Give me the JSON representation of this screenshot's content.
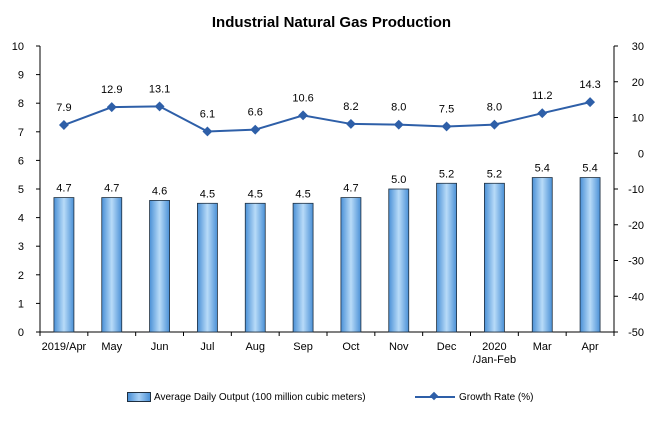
{
  "chart_data": {
    "type": "bar",
    "title": "Industrial Natural Gas Production",
    "categories": [
      "2019/Apr",
      "May",
      "Jun",
      "Jul",
      "Aug",
      "Sep",
      "Oct",
      "Nov",
      "Dec",
      "2020\n/Jan-Feb",
      "Mar",
      "Apr"
    ],
    "series": [
      {
        "name": "Average Daily Output (100 million cubic meters)",
        "type": "bar",
        "axis": "left",
        "values": [
          4.7,
          4.7,
          4.6,
          4.5,
          4.5,
          4.5,
          4.7,
          5.0,
          5.2,
          5.2,
          5.4,
          5.4
        ],
        "labels": [
          "4.7",
          "4.7",
          "4.6",
          "4.5",
          "4.5",
          "4.5",
          "4.7",
          "5.0",
          "5.2",
          "5.2",
          "5.4",
          "5.4"
        ]
      },
      {
        "name": "Growth Rate (%)",
        "type": "line",
        "axis": "right",
        "values": [
          7.9,
          12.9,
          13.1,
          6.1,
          6.6,
          10.6,
          8.2,
          8.0,
          7.5,
          8.0,
          11.2,
          14.3
        ],
        "labels": [
          "7.9",
          "12.9",
          "13.1",
          "6.1",
          "6.6",
          "10.6",
          "8.2",
          "8.0",
          "7.5",
          "8.0",
          "11.2",
          "14.3"
        ]
      }
    ],
    "y_left": {
      "lim": [
        0,
        10
      ],
      "ticks": [
        0,
        1,
        2,
        3,
        4,
        5,
        6,
        7,
        8,
        9,
        10
      ]
    },
    "y_right": {
      "lim": [
        -50,
        30
      ],
      "ticks": [
        -50,
        -40,
        -30,
        -20,
        -10,
        0,
        10,
        20,
        30
      ]
    },
    "grid": false,
    "legend": "bottom",
    "colors": {
      "bar": "#8fc3f0",
      "bar_edge": "#1f2f3f",
      "line": "#2e5fa8"
    }
  }
}
